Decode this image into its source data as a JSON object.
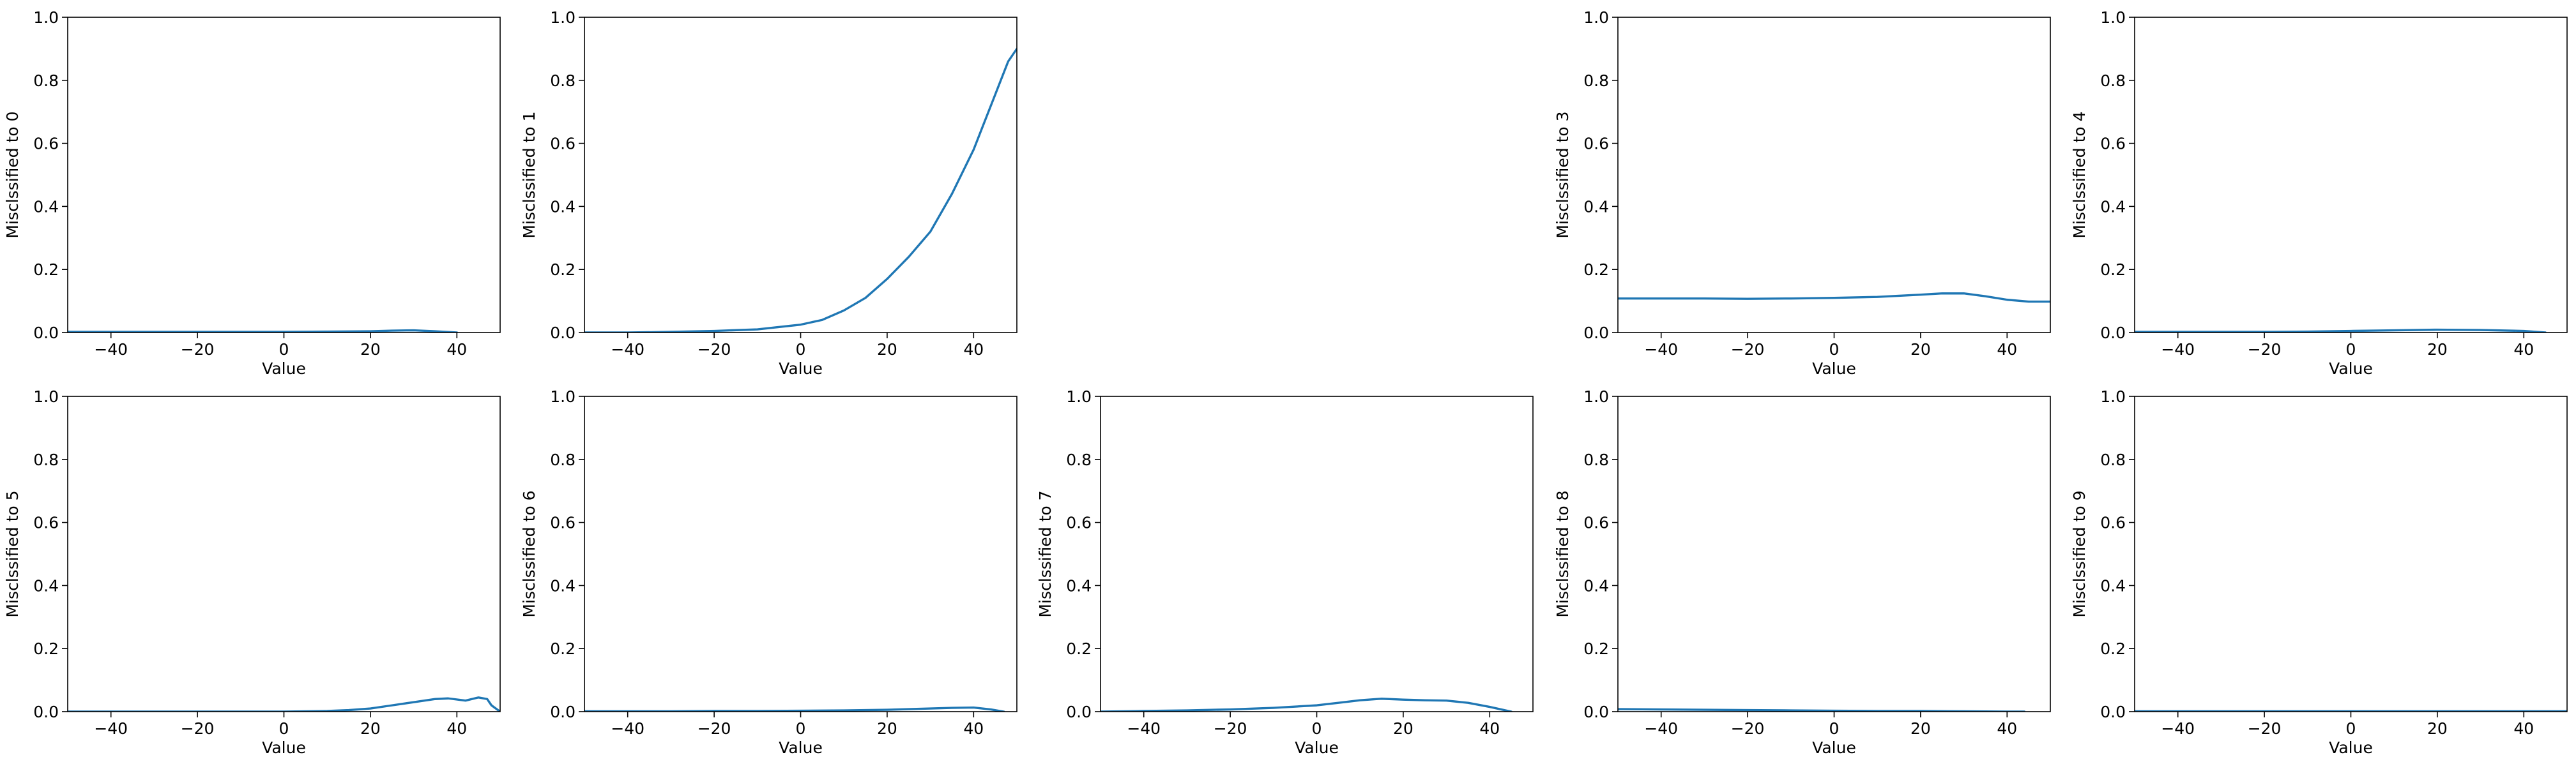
{
  "figure": {
    "background": "#ffffff",
    "line_color": "#1f77b4"
  },
  "chart_data": [
    {
      "type": "line",
      "panel": 0,
      "xlabel": "Value",
      "ylabel": "Misclssified to 0",
      "xlim": [
        -50,
        50
      ],
      "ylim": [
        0.0,
        1.0
      ],
      "xticks": [
        -40,
        -20,
        0,
        20,
        40
      ],
      "yticks": [
        0.0,
        0.2,
        0.4,
        0.6,
        0.8,
        1.0
      ],
      "series": [
        {
          "x": [
            -50,
            -40,
            -30,
            -20,
            -10,
            0,
            10,
            20,
            25,
            30,
            35,
            40
          ],
          "y": [
            0.002,
            0.002,
            0.002,
            0.002,
            0.002,
            0.002,
            0.003,
            0.004,
            0.006,
            0.007,
            0.004,
            0.0
          ]
        }
      ]
    },
    {
      "type": "line",
      "panel": 1,
      "xlabel": "Value",
      "ylabel": "Misclssified to 1",
      "xlim": [
        -50,
        50
      ],
      "ylim": [
        0.0,
        1.0
      ],
      "xticks": [
        -40,
        -20,
        0,
        20,
        40
      ],
      "yticks": [
        0.0,
        0.2,
        0.4,
        0.6,
        0.8,
        1.0
      ],
      "series": [
        {
          "x": [
            -50,
            -40,
            -30,
            -20,
            -10,
            0,
            5,
            10,
            15,
            20,
            25,
            30,
            35,
            40,
            42,
            44,
            46,
            48,
            50
          ],
          "y": [
            0.0,
            0.0,
            0.002,
            0.005,
            0.01,
            0.025,
            0.04,
            0.07,
            0.11,
            0.17,
            0.24,
            0.32,
            0.44,
            0.58,
            0.65,
            0.72,
            0.79,
            0.86,
            0.9
          ]
        }
      ]
    },
    {
      "type": "line",
      "panel": 2,
      "hidden": true,
      "xlabel": "",
      "ylabel": "",
      "series": []
    },
    {
      "type": "line",
      "panel": 3,
      "xlabel": "Value",
      "ylabel": "Misclssified to 3",
      "xlim": [
        -50,
        50
      ],
      "ylim": [
        0.0,
        1.0
      ],
      "xticks": [
        -40,
        -20,
        0,
        20,
        40
      ],
      "yticks": [
        0.0,
        0.2,
        0.4,
        0.6,
        0.8,
        1.0
      ],
      "series": [
        {
          "x": [
            -50,
            -40,
            -30,
            -20,
            -10,
            0,
            10,
            20,
            25,
            30,
            35,
            40,
            45,
            50
          ],
          "y": [
            0.108,
            0.108,
            0.108,
            0.107,
            0.108,
            0.11,
            0.113,
            0.12,
            0.124,
            0.124,
            0.115,
            0.104,
            0.098,
            0.098
          ]
        }
      ]
    },
    {
      "type": "line",
      "panel": 4,
      "xlabel": "Value",
      "ylabel": "Misclssified to 4",
      "xlim": [
        -50,
        50
      ],
      "ylim": [
        0.0,
        1.0
      ],
      "xticks": [
        -40,
        -20,
        0,
        20,
        40
      ],
      "yticks": [
        0.0,
        0.2,
        0.4,
        0.6,
        0.8,
        1.0
      ],
      "series": [
        {
          "x": [
            -50,
            -40,
            -30,
            -20,
            -10,
            0,
            10,
            20,
            30,
            40,
            45
          ],
          "y": [
            0.002,
            0.002,
            0.002,
            0.002,
            0.003,
            0.005,
            0.007,
            0.009,
            0.008,
            0.005,
            0.0
          ]
        }
      ]
    },
    {
      "type": "line",
      "panel": 5,
      "xlabel": "Value",
      "ylabel": "Misclssified to 5",
      "xlim": [
        -50,
        50
      ],
      "ylim": [
        0.0,
        1.0
      ],
      "xticks": [
        -40,
        -20,
        0,
        20,
        40
      ],
      "yticks": [
        0.0,
        0.2,
        0.4,
        0.6,
        0.8,
        1.0
      ],
      "series": [
        {
          "x": [
            -50,
            -40,
            -30,
            -20,
            -10,
            0,
            10,
            15,
            20,
            25,
            30,
            35,
            38,
            42,
            45,
            47,
            48,
            50
          ],
          "y": [
            0.0,
            0.0,
            0.0,
            0.0,
            0.0,
            0.0,
            0.002,
            0.005,
            0.01,
            0.02,
            0.03,
            0.04,
            0.042,
            0.035,
            0.045,
            0.04,
            0.02,
            0.0
          ]
        }
      ]
    },
    {
      "type": "line",
      "panel": 6,
      "xlabel": "Value",
      "ylabel": "Misclssified to 6",
      "xlim": [
        -50,
        50
      ],
      "ylim": [
        0.0,
        1.0
      ],
      "xticks": [
        -40,
        -20,
        0,
        20,
        40
      ],
      "yticks": [
        0.0,
        0.2,
        0.4,
        0.6,
        0.8,
        1.0
      ],
      "series": [
        {
          "x": [
            -50,
            -40,
            -30,
            -20,
            -10,
            0,
            10,
            20,
            30,
            35,
            40,
            44,
            47
          ],
          "y": [
            0.001,
            0.001,
            0.001,
            0.002,
            0.002,
            0.003,
            0.004,
            0.006,
            0.01,
            0.012,
            0.013,
            0.007,
            0.0
          ]
        }
      ]
    },
    {
      "type": "line",
      "panel": 7,
      "xlabel": "Value",
      "ylabel": "Misclssified to 7",
      "xlim": [
        -50,
        50
      ],
      "ylim": [
        0.0,
        1.0
      ],
      "xticks": [
        -40,
        -20,
        0,
        20,
        40
      ],
      "yticks": [
        0.0,
        0.2,
        0.4,
        0.6,
        0.8,
        1.0
      ],
      "series": [
        {
          "x": [
            -50,
            -40,
            -30,
            -20,
            -10,
            0,
            5,
            10,
            15,
            20,
            25,
            30,
            35,
            40,
            45
          ],
          "y": [
            0.0,
            0.002,
            0.004,
            0.007,
            0.012,
            0.02,
            0.028,
            0.036,
            0.041,
            0.038,
            0.036,
            0.035,
            0.028,
            0.015,
            0.0
          ]
        }
      ]
    },
    {
      "type": "line",
      "panel": 8,
      "xlabel": "Value",
      "ylabel": "Misclssified to 8",
      "xlim": [
        -50,
        50
      ],
      "ylim": [
        0.0,
        1.0
      ],
      "xticks": [
        -40,
        -20,
        0,
        20,
        40
      ],
      "yticks": [
        0.0,
        0.2,
        0.4,
        0.6,
        0.8,
        1.0
      ],
      "series": [
        {
          "x": [
            -50,
            -40,
            -30,
            -20,
            -10,
            0,
            10,
            20,
            30,
            40,
            44
          ],
          "y": [
            0.008,
            0.007,
            0.006,
            0.005,
            0.004,
            0.003,
            0.002,
            0.002,
            0.001,
            0.0,
            0.0
          ]
        }
      ]
    },
    {
      "type": "line",
      "panel": 9,
      "xlabel": "Value",
      "ylabel": "Misclssified to 9",
      "xlim": [
        -50,
        50
      ],
      "ylim": [
        0.0,
        1.0
      ],
      "xticks": [
        -40,
        -20,
        0,
        20,
        40
      ],
      "yticks": [
        0.0,
        0.2,
        0.4,
        0.6,
        0.8,
        1.0
      ],
      "series": [
        {
          "x": [
            -50,
            -40,
            -30,
            -20,
            -10,
            0,
            10,
            20,
            30,
            40,
            50
          ],
          "y": [
            0.001,
            0.001,
            0.001,
            0.001,
            0.001,
            0.001,
            0.001,
            0.001,
            0.001,
            0.001,
            0.001
          ]
        }
      ]
    }
  ]
}
